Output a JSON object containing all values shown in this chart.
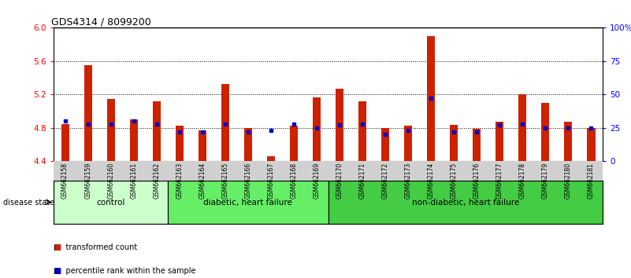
{
  "title": "GDS4314 / 8099200",
  "samples": [
    "GSM662158",
    "GSM662159",
    "GSM662160",
    "GSM662161",
    "GSM662162",
    "GSM662163",
    "GSM662164",
    "GSM662165",
    "GSM662166",
    "GSM662167",
    "GSM662168",
    "GSM662169",
    "GSM662170",
    "GSM662171",
    "GSM662172",
    "GSM662173",
    "GSM662174",
    "GSM662175",
    "GSM662176",
    "GSM662177",
    "GSM662178",
    "GSM662179",
    "GSM662180",
    "GSM662181"
  ],
  "red_values": [
    4.85,
    5.55,
    5.15,
    4.9,
    5.12,
    4.83,
    4.77,
    5.33,
    4.8,
    4.46,
    4.83,
    5.17,
    5.27,
    5.12,
    4.8,
    4.83,
    5.9,
    4.84,
    4.79,
    4.87,
    5.2,
    5.1,
    4.87,
    4.8
  ],
  "blue_values": [
    30,
    28,
    28,
    30,
    28,
    22,
    22,
    28,
    22,
    23,
    28,
    25,
    27,
    28,
    20,
    23,
    47,
    22,
    22,
    27,
    28,
    25,
    25,
    25
  ],
  "groups": [
    {
      "label": "control",
      "start": 0,
      "end": 5,
      "color": "#ccffcc"
    },
    {
      "label": "diabetic, heart failure",
      "start": 5,
      "end": 12,
      "color": "#66ee66"
    },
    {
      "label": "non-diabetic, heart failure",
      "start": 12,
      "end": 24,
      "color": "#44cc44"
    }
  ],
  "ylim_left": [
    4.4,
    6.0
  ],
  "ylim_right": [
    0,
    100
  ],
  "yticks_left": [
    4.4,
    4.8,
    5.2,
    5.6,
    6.0
  ],
  "yticks_right": [
    0,
    25,
    50,
    75,
    100
  ],
  "ytick_labels_right": [
    "0",
    "25",
    "50",
    "75",
    "100%"
  ],
  "bar_color": "#cc2200",
  "dot_color": "#0000cc",
  "bar_width": 0.35,
  "bg_color": "#ffffff",
  "disease_state_label": "disease state",
  "legend_items": [
    {
      "color": "#cc2200",
      "label": "transformed count"
    },
    {
      "color": "#0000cc",
      "label": "percentile rank within the sample"
    }
  ]
}
